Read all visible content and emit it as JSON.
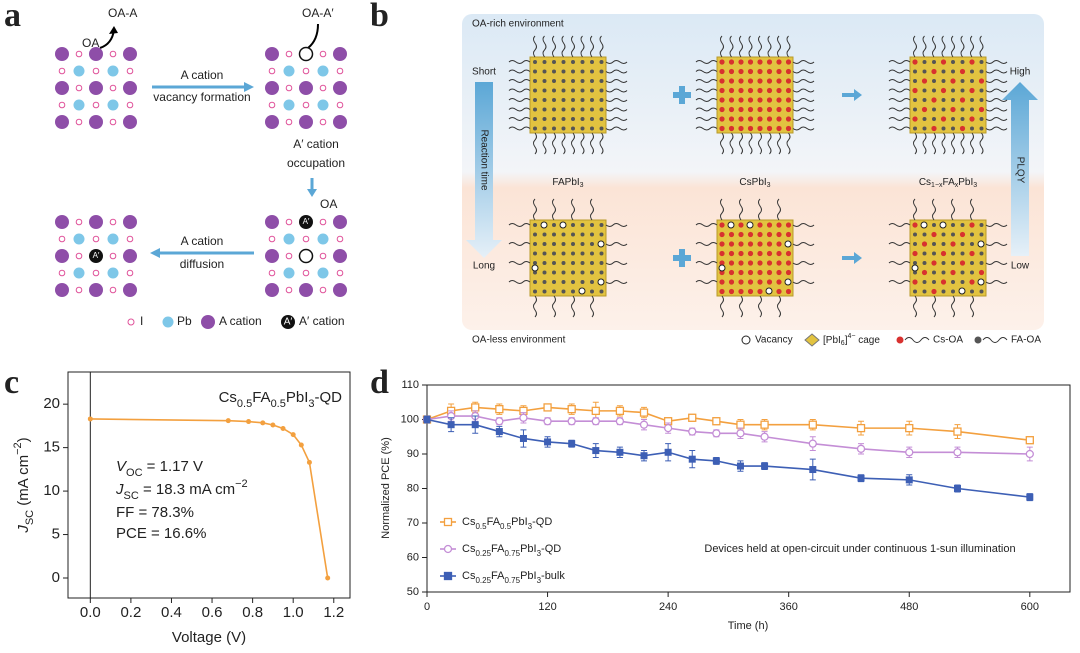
{
  "panel_labels": [
    "a",
    "b",
    "c",
    "d"
  ],
  "panel_a": {
    "oa_a": "OA-A",
    "oa": "OA",
    "oa_a_prime": "OA-A′",
    "step1": [
      "A cation",
      "vacancy formation"
    ],
    "step2": [
      "A′ cation",
      "occupation"
    ],
    "step2_oa": "OA",
    "step3": [
      "A cation",
      "diffusion"
    ],
    "atom_label": "A′",
    "legend": [
      "I",
      "Pb",
      "A cation",
      "A′ cation"
    ]
  },
  "panel_b": {
    "top_env": "OA-rich environment",
    "bottom_env": "OA-less environment",
    "short": "Short",
    "long": "Long",
    "reaction_time": "Reaction time",
    "high": "High",
    "low": "Low",
    "plqy": "PLQY",
    "products": [
      [
        "FAPbI",
        "3"
      ],
      [
        "CsPbI",
        "3"
      ],
      [
        "Cs",
        "1−x",
        "FA",
        "x",
        "PbI",
        "3"
      ]
    ],
    "legend": {
      "vacancy": "Vacancy",
      "cage": [
        "[PbI",
        "6",
        "]",
        "4−",
        " cage"
      ],
      "cs_oa": "Cs-OA",
      "fa_oa": "FA-OA"
    }
  },
  "chart_data": [
    {
      "type": "line",
      "title": [
        "Cs",
        "0.5",
        "FA",
        "0.5",
        "PbI",
        "3",
        "-QD"
      ],
      "xlabel": "Voltage (V)",
      "ylabel": [
        "J",
        "SC",
        " (mA cm",
        "−2",
        ")"
      ],
      "annotations": [
        [
          "V",
          "OC",
          " = 1.17 V"
        ],
        [
          "J",
          "SC",
          " = 18.3 mA cm",
          "−2"
        ],
        [
          "FF = 78.3%"
        ],
        [
          "PCE = 16.6%"
        ]
      ],
      "x": [
        0,
        0.68,
        0.78,
        0.85,
        0.9,
        0.95,
        1.0,
        1.04,
        1.08,
        1.17
      ],
      "series": [
        {
          "color": "#f3a03f",
          "values": [
            18.3,
            18.1,
            18.0,
            17.85,
            17.6,
            17.2,
            16.5,
            15.3,
            13.3,
            0
          ]
        }
      ],
      "xlim": [
        -0.11,
        1.28
      ],
      "ylim": [
        -2.3,
        23.7
      ],
      "xticks": [
        {
          "value": 0,
          "label": "0.0"
        },
        0.2,
        0.4,
        0.6,
        0.8,
        {
          "value": 1,
          "label": "1.0"
        },
        1.2
      ],
      "yticks": [
        0,
        5,
        10,
        15,
        20
      ]
    },
    {
      "type": "line",
      "xlabel": "Time (h)",
      "ylabel": "Normalized PCE (%)",
      "annotation": "Devices held at open-circuit under continuous 1-sun illumination",
      "x": [
        0,
        24,
        48,
        72,
        96,
        120,
        144,
        168,
        192,
        216,
        240,
        264,
        288,
        312,
        336,
        384,
        432,
        480,
        528,
        600
      ],
      "series": [
        {
          "name": [
            "Cs",
            "0.5",
            "FA",
            "0.5",
            "PbI",
            "3",
            "-QD"
          ],
          "color": "#f3a03f",
          "marker": "square-open",
          "values": [
            100,
            102.5,
            103.5,
            103,
            102.5,
            103.5,
            103,
            102.5,
            102.5,
            102,
            99.5,
            100.5,
            99.5,
            98.5,
            98.5,
            98.5,
            97.5,
            97.5,
            96.5,
            94
          ],
          "errors": [
            1,
            2,
            1.5,
            1.5,
            1.5,
            1,
            1.5,
            2.5,
            1.5,
            1.5,
            1,
            1,
            1,
            1.5,
            1.5,
            1.5,
            2,
            2,
            2,
            1
          ]
        },
        {
          "name": [
            "Cs",
            "0.25",
            "FA",
            "0.75",
            "PbI",
            "3",
            "-QD"
          ],
          "color": "#c48ed6",
          "marker": "circle-open",
          "values": [
            100,
            101,
            101,
            99.5,
            100.5,
            99.5,
            99.5,
            99.5,
            99.5,
            98.5,
            97.5,
            96.5,
            96,
            96,
            95,
            93,
            91.5,
            90.5,
            90.5,
            90
          ],
          "errors": [
            1,
            1.5,
            1.5,
            1,
            1.5,
            1,
            1,
            1,
            1,
            1.5,
            1.5,
            1,
            1,
            1.5,
            1.5,
            2,
            1.5,
            1.5,
            1.5,
            2
          ]
        },
        {
          "name": [
            "Cs",
            "0.25",
            "FA",
            "0.75",
            "PbI",
            "3",
            "-bulk"
          ],
          "color": "#3d5fb5",
          "marker": "square",
          "values": [
            100,
            98.5,
            98.5,
            96.5,
            94.5,
            93.5,
            93,
            91,
            90.5,
            89.5,
            90.5,
            88.5,
            88,
            86.5,
            86.5,
            85.5,
            83,
            82.5,
            80,
            77.5
          ],
          "errors": [
            1,
            2,
            2.5,
            1.5,
            2.5,
            1.5,
            1,
            2,
            1.5,
            1.5,
            2.5,
            2.5,
            1,
            1.5,
            1,
            3,
            1,
            1.5,
            1,
            1
          ]
        }
      ],
      "xlim": [
        0,
        640
      ],
      "ylim": [
        50,
        110
      ],
      "xticks": [
        0,
        120,
        240,
        360,
        480,
        600
      ],
      "yticks": [
        50,
        60,
        70,
        80,
        90,
        100,
        110
      ]
    }
  ]
}
